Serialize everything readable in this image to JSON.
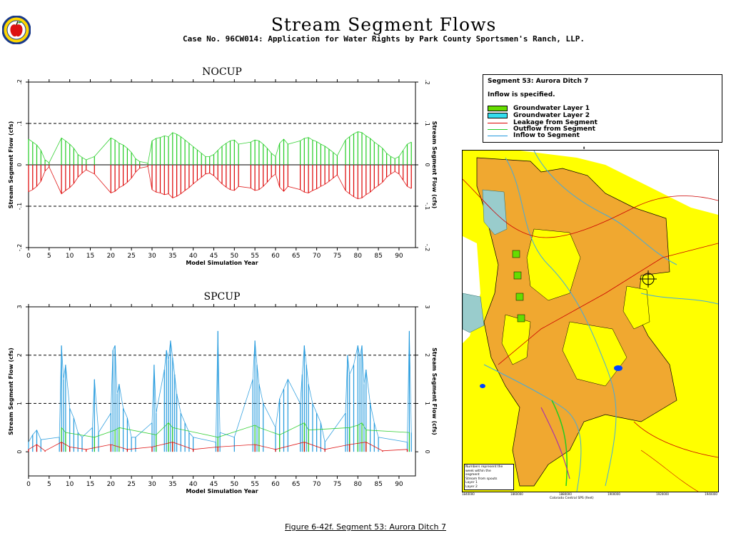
{
  "page": {
    "title": "Stream  Segment  Flows",
    "subtitle": "Case No. 96CW014: Application for Water Rights by Park County Sportsmen's Ranch, LLP.",
    "figure_caption": "Figure 6-42f.   Segment 53: Aurora Ditch 7",
    "logo_icon": "apple-seal-logo"
  },
  "legend": {
    "title": "Segment 53: Aurora Ditch 7",
    "note": "Inflow is specified.",
    "items": [
      {
        "label": "Groundwater Layer 1",
        "kind": "box",
        "color": "#66dd00"
      },
      {
        "label": "Groundwater Layer 2",
        "kind": "box",
        "color": "#33ddee"
      },
      {
        "label": "Leakage from Segment",
        "kind": "line",
        "color": "#dd0000"
      },
      {
        "label": "Outflow from Segment",
        "kind": "line",
        "color": "#22cc22"
      },
      {
        "label": "Inflow to Segment",
        "kind": "line",
        "color": "#2299dd"
      }
    ]
  },
  "chart_data": [
    {
      "type": "line",
      "title": "NOCUP",
      "xlabel": "Model Simulation Year",
      "ylabel": "Stream Segment Flow (cfs)",
      "xlim": [
        0,
        94
      ],
      "ylim": [
        -0.2,
        0.2
      ],
      "xticks": [
        0,
        5,
        10,
        15,
        20,
        25,
        30,
        35,
        40,
        45,
        50,
        55,
        60,
        65,
        70,
        75,
        80,
        85,
        90
      ],
      "yticks": [
        -0.2,
        -0.1,
        0,
        0.1,
        0.2
      ],
      "ytick_labels": [
        "-.2",
        "-.1",
        "0",
        ".1",
        ".2"
      ],
      "hlines": [
        {
          "y": 0.1,
          "style": "dashed"
        },
        {
          "y": -0.1,
          "style": "dashed"
        },
        {
          "y": 0,
          "style": "solid"
        }
      ],
      "grid": false,
      "series": [
        {
          "color": "#22cc22",
          "x": [
            0,
            1,
            2,
            3,
            4,
            5,
            8,
            9,
            10,
            11,
            12,
            13,
            14,
            16,
            20,
            21,
            22,
            23,
            24,
            25,
            26,
            27,
            29,
            30,
            31,
            32,
            33,
            34,
            35,
            36,
            37,
            38,
            39,
            40,
            41,
            42,
            43,
            44,
            45,
            46,
            47,
            48,
            49,
            50,
            51,
            54,
            55,
            56,
            57,
            58,
            59,
            60,
            61,
            62,
            63,
            66,
            67,
            68,
            69,
            70,
            71,
            72,
            73,
            74,
            75,
            77,
            78,
            79,
            80,
            81,
            82,
            83,
            84,
            85,
            86,
            87,
            88,
            89,
            90,
            91,
            92,
            93
          ],
          "y": [
            0.062,
            0.055,
            0.048,
            0.035,
            0.012,
            0.005,
            0.065,
            0.058,
            0.05,
            0.04,
            0.025,
            0.018,
            0.012,
            0.02,
            0.065,
            0.06,
            0.052,
            0.048,
            0.04,
            0.03,
            0.015,
            0.008,
            0.004,
            0.058,
            0.064,
            0.066,
            0.07,
            0.068,
            0.078,
            0.074,
            0.068,
            0.06,
            0.052,
            0.044,
            0.036,
            0.028,
            0.02,
            0.02,
            0.025,
            0.035,
            0.045,
            0.052,
            0.058,
            0.06,
            0.05,
            0.055,
            0.06,
            0.058,
            0.05,
            0.04,
            0.028,
            0.02,
            0.052,
            0.062,
            0.05,
            0.058,
            0.064,
            0.066,
            0.06,
            0.056,
            0.05,
            0.045,
            0.038,
            0.03,
            0.022,
            0.06,
            0.068,
            0.075,
            0.08,
            0.078,
            0.07,
            0.064,
            0.055,
            0.048,
            0.04,
            0.028,
            0.02,
            0.015,
            0.02,
            0.035,
            0.05,
            0.055
          ]
        },
        {
          "color": "#dd0000",
          "x": [
            0,
            1,
            2,
            3,
            4,
            5,
            8,
            9,
            10,
            11,
            12,
            13,
            14,
            16,
            20,
            21,
            22,
            23,
            24,
            25,
            26,
            27,
            29,
            30,
            31,
            32,
            33,
            34,
            35,
            36,
            37,
            38,
            39,
            40,
            41,
            42,
            43,
            44,
            45,
            46,
            47,
            48,
            49,
            50,
            51,
            54,
            55,
            56,
            57,
            58,
            59,
            60,
            61,
            62,
            63,
            66,
            67,
            68,
            69,
            70,
            71,
            72,
            73,
            74,
            75,
            77,
            78,
            79,
            80,
            81,
            82,
            83,
            84,
            85,
            86,
            87,
            88,
            89,
            90,
            91,
            92,
            93
          ],
          "y": [
            -0.065,
            -0.06,
            -0.052,
            -0.04,
            -0.015,
            -0.005,
            -0.07,
            -0.062,
            -0.055,
            -0.045,
            -0.03,
            -0.02,
            -0.012,
            -0.022,
            -0.068,
            -0.064,
            -0.055,
            -0.05,
            -0.042,
            -0.032,
            -0.018,
            -0.008,
            -0.004,
            -0.06,
            -0.066,
            -0.068,
            -0.072,
            -0.07,
            -0.08,
            -0.076,
            -0.07,
            -0.062,
            -0.055,
            -0.046,
            -0.038,
            -0.03,
            -0.022,
            -0.02,
            -0.026,
            -0.036,
            -0.046,
            -0.054,
            -0.06,
            -0.062,
            -0.052,
            -0.056,
            -0.062,
            -0.06,
            -0.052,
            -0.042,
            -0.03,
            -0.022,
            -0.054,
            -0.064,
            -0.052,
            -0.06,
            -0.066,
            -0.068,
            -0.062,
            -0.058,
            -0.052,
            -0.047,
            -0.04,
            -0.032,
            -0.024,
            -0.062,
            -0.07,
            -0.077,
            -0.082,
            -0.08,
            -0.072,
            -0.066,
            -0.057,
            -0.05,
            -0.042,
            -0.03,
            -0.022,
            -0.016,
            -0.022,
            -0.037,
            -0.052,
            -0.057
          ]
        }
      ]
    },
    {
      "type": "line",
      "title": "SPCUP",
      "xlabel": "Model Simulation Year",
      "ylabel": "Stream Segment Flow (cfs)",
      "xlim": [
        0,
        94
      ],
      "ylim": [
        -0.5,
        3.0
      ],
      "xticks": [
        0,
        5,
        10,
        15,
        20,
        25,
        30,
        35,
        40,
        45,
        50,
        55,
        60,
        65,
        70,
        75,
        80,
        85,
        90
      ],
      "yticks": [
        0,
        1,
        2,
        3
      ],
      "ytick_labels": [
        "0",
        "1",
        "2",
        "3"
      ],
      "hlines": [
        {
          "y": 1,
          "style": "dashed"
        },
        {
          "y": 2,
          "style": "dashed"
        },
        {
          "y": 3,
          "style": "dashed"
        }
      ],
      "grid": false,
      "series": [
        {
          "color": "#2299dd",
          "x": [
            0,
            1,
            2,
            3,
            7.5,
            8,
            8.5,
            9,
            10,
            11,
            12,
            13,
            15.5,
            16,
            17,
            20,
            20.5,
            21,
            21.5,
            22,
            23,
            24,
            25,
            26,
            30,
            30.5,
            31,
            33,
            33.5,
            34,
            34.5,
            35,
            35.5,
            36,
            37,
            38,
            39,
            40,
            45.5,
            46,
            46.5,
            50,
            54.5,
            55,
            55.5,
            56,
            57,
            60,
            61,
            62,
            63,
            66,
            66.5,
            67,
            67.5,
            68,
            69,
            70,
            71,
            72,
            77,
            77.5,
            78,
            79,
            80,
            80.5,
            81,
            81.5,
            82,
            83,
            84,
            85,
            92,
            92.5,
            93
          ],
          "y": [
            0.2,
            0.35,
            0.45,
            0.25,
            0.3,
            2.2,
            1.5,
            1.8,
            0.9,
            0.7,
            0.4,
            0.3,
            0.5,
            1.5,
            0.4,
            0.8,
            2.1,
            2.2,
            1.2,
            1.4,
            0.9,
            0.7,
            0.3,
            0.3,
            0.6,
            1.8,
            0.8,
            1.7,
            2.1,
            1.9,
            2.3,
            1.95,
            1.6,
            1.2,
            0.8,
            0.6,
            0.4,
            0.3,
            0.2,
            2.5,
            0.4,
            0.3,
            1.5,
            2.3,
            1.8,
            1.4,
            1.0,
            0.5,
            1.1,
            1.3,
            1.5,
            1.0,
            1.6,
            2.2,
            1.8,
            1.4,
            1.0,
            0.8,
            0.6,
            0.2,
            0.8,
            2.0,
            1.6,
            1.8,
            2.2,
            1.95,
            2.2,
            1.4,
            1.7,
            1.0,
            0.6,
            0.3,
            0.2,
            2.5,
            0.4
          ]
        },
        {
          "color": "#22cc22",
          "x": [
            8,
            9,
            16,
            21,
            22,
            31,
            34,
            35,
            46,
            55,
            56,
            61,
            67,
            68,
            78,
            80,
            81,
            82,
            92.5
          ],
          "y": [
            0.5,
            0.4,
            0.3,
            0.45,
            0.5,
            0.35,
            0.6,
            0.5,
            0.3,
            0.55,
            0.5,
            0.35,
            0.6,
            0.45,
            0.5,
            0.55,
            0.6,
            0.45,
            0.4
          ]
        },
        {
          "color": "#dd0000",
          "x": [
            0,
            2,
            4,
            8,
            10,
            14,
            20,
            24,
            30,
            35,
            40,
            46,
            55,
            60,
            67,
            72,
            78,
            82,
            86,
            92
          ],
          "y": [
            0.05,
            0.15,
            0.02,
            0.2,
            0.1,
            0.05,
            0.15,
            0.05,
            0.1,
            0.2,
            0.05,
            0.1,
            0.15,
            0.05,
            0.2,
            0.05,
            0.15,
            0.2,
            0.02,
            0.05
          ]
        }
      ]
    }
  ],
  "map": {
    "notes_line1": "Numbers represent the",
    "notes_line2": "week within the",
    "notes_line3": "segment",
    "notes_line4": "Stream from spouts",
    "notes_line5": "Layer 1",
    "notes_line6": "Layer 2",
    "x_label": "Colorado Central SPS (feet)",
    "x_ticks": [
      "1840000",
      "1860000",
      "1880000",
      "1900000",
      "1920000",
      "1940000"
    ],
    "colors": {
      "background": "#ffff00",
      "orange": "#f0a830",
      "water": "#0044ff",
      "river": "#44aadd",
      "road": "#cc0000"
    }
  }
}
